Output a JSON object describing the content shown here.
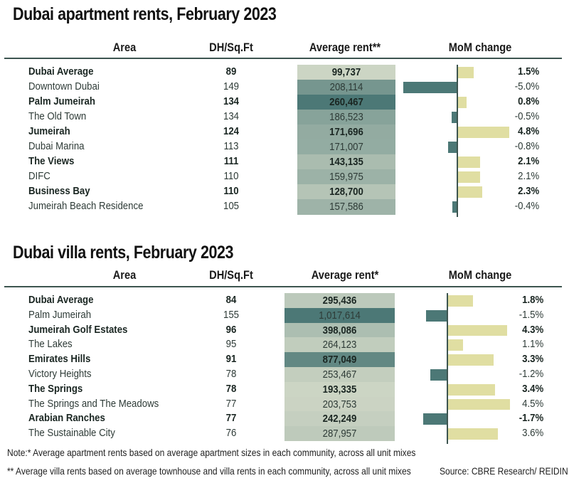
{
  "colors": {
    "rent_low": "#e3e5d2",
    "rent_high": "#4c7876",
    "bar_up": "#e0dea2",
    "bar_down": "#4c7876",
    "rule": "#3d5550"
  },
  "headers": {
    "area": "Area",
    "dh": "DH/Sq.Ft",
    "mom": "MoM change"
  },
  "chart_data": [
    {
      "type": "table",
      "title": "Dubai apartment rents, February 2023",
      "rent_header": "Average rent**",
      "rows": [
        {
          "area": "Dubai Average",
          "dh": "89",
          "rent": 99737,
          "rent_label": "99,737",
          "mom": 1.5,
          "mom_label": "1.5%",
          "bold": true
        },
        {
          "area": "Downtown Dubai",
          "dh": "149",
          "rent": 208114,
          "rent_label": "208,114",
          "mom": -5.0,
          "mom_label": "-5.0%",
          "bold": false
        },
        {
          "area": "Palm Jumeirah",
          "dh": "134",
          "rent": 260467,
          "rent_label": "260,467",
          "mom": 0.8,
          "mom_label": "0.8%",
          "bold": true
        },
        {
          "area": "The Old Town",
          "dh": "134",
          "rent": 186523,
          "rent_label": "186,523",
          "mom": -0.5,
          "mom_label": "-0.5%",
          "bold": false
        },
        {
          "area": "Jumeirah",
          "dh": "124",
          "rent": 171696,
          "rent_label": "171,696",
          "mom": 4.8,
          "mom_label": "4.8%",
          "bold": true
        },
        {
          "area": "Dubai Marina",
          "dh": "113",
          "rent": 171007,
          "rent_label": "171,007",
          "mom": -0.8,
          "mom_label": "-0.8%",
          "bold": false
        },
        {
          "area": "The Views",
          "dh": "111",
          "rent": 143135,
          "rent_label": "143,135",
          "mom": 2.1,
          "mom_label": "2.1%",
          "bold": true
        },
        {
          "area": "DIFC",
          "dh": "110",
          "rent": 159975,
          "rent_label": "159,975",
          "mom": 2.1,
          "mom_label": "2.1%",
          "bold": false
        },
        {
          "area": "Business Bay",
          "dh": "110",
          "rent": 128700,
          "rent_label": "128,700",
          "mom": 2.3,
          "mom_label": "2.3%",
          "bold": true
        },
        {
          "area": "Jumeirah Beach Residence",
          "dh": "105",
          "rent": 157586,
          "rent_label": "157,586",
          "mom": -0.4,
          "mom_label": "-0.4%",
          "bold": false
        }
      ]
    },
    {
      "type": "table",
      "title": "Dubai villa rents, February 2023",
      "rent_header": "Average rent*",
      "rows": [
        {
          "area": "Dubai Average",
          "dh": "84",
          "rent": 295436,
          "rent_label": "295,436",
          "mom": 1.8,
          "mom_label": "1.8%",
          "bold": true
        },
        {
          "area": "Palm Jumeirah",
          "dh": "155",
          "rent": 1017614,
          "rent_label": "1,017,614",
          "mom": -1.5,
          "mom_label": "-1.5%",
          "bold": false
        },
        {
          "area": "Jumeirah Golf Estates",
          "dh": "96",
          "rent": 398086,
          "rent_label": "398,086",
          "mom": 4.3,
          "mom_label": "4.3%",
          "bold": true
        },
        {
          "area": "The Lakes",
          "dh": "95",
          "rent": 264123,
          "rent_label": "264,123",
          "mom": 1.1,
          "mom_label": "1.1%",
          "bold": false
        },
        {
          "area": "Emirates Hills",
          "dh": "91",
          "rent": 877049,
          "rent_label": "877,049",
          "mom": 3.3,
          "mom_label": "3.3%",
          "bold": true
        },
        {
          "area": "Victory Heights",
          "dh": "78",
          "rent": 253467,
          "rent_label": "253,467",
          "mom": -1.2,
          "mom_label": "-1.2%",
          "bold": false
        },
        {
          "area": "The Springs",
          "dh": "78",
          "rent": 193335,
          "rent_label": "193,335",
          "mom": 3.4,
          "mom_label": "3.4%",
          "bold": true
        },
        {
          "area": "The Springs and The Meadows",
          "dh": "77",
          "rent": 203753,
          "rent_label": "203,753",
          "mom": 4.5,
          "mom_label": "4.5%",
          "bold": false
        },
        {
          "area": "Arabian Ranches",
          "dh": "77",
          "rent": 242249,
          "rent_label": "242,249",
          "mom": -1.7,
          "mom_label": "-1.7%",
          "bold": true
        },
        {
          "area": "The Sustainable City",
          "dh": "76",
          "rent": 287957,
          "rent_label": "287,957",
          "mom": 3.6,
          "mom_label": "3.6%",
          "bold": false
        }
      ]
    }
  ],
  "notes": {
    "note1": "Note:* Average apartment rents based on average apartment sizes in each community, across all unit mixes",
    "note2": "** Average villa rents based on average townhouse and villa rents in each community, across all unit mixes",
    "source": "Source: CBRE Research/ REIDIN"
  }
}
